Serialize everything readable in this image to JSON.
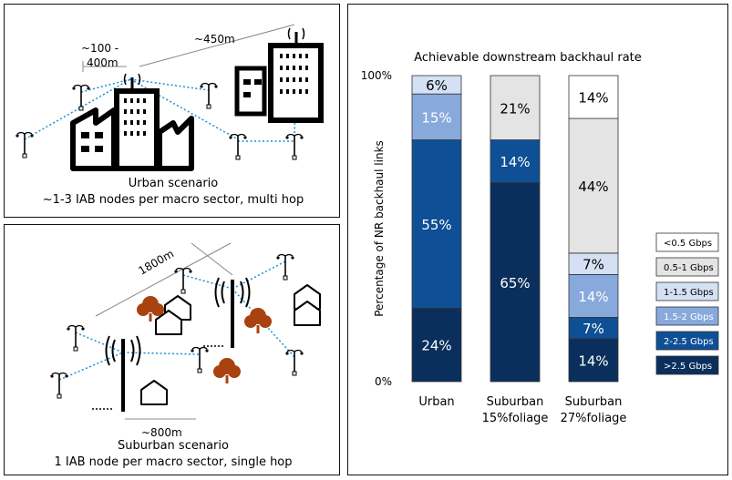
{
  "urban": {
    "dist_near_line1": "~100 -",
    "dist_near_line2": "400m",
    "dist_far": "~450m",
    "caption_line1": "Urban scenario",
    "caption_line2": "~1-3 IAB nodes per macro sector, multi hop"
  },
  "suburban": {
    "dist_far": "1800m",
    "dist_near": "~800m",
    "caption_line1": "Suburban scenario",
    "caption_line2": "1 IAB node per macro sector, single hop"
  },
  "chart_data": {
    "type": "bar",
    "stacked": true,
    "title": "Achievable downstream backhaul rate",
    "ylabel": "Percentage of NR backhaul links",
    "xlabel": "",
    "ylim": [
      0,
      100
    ],
    "y_ticks": [
      "0%",
      "100%"
    ],
    "categories": [
      {
        "line1": "Urban",
        "line2": ""
      },
      {
        "line1": "Suburban",
        "line2": "15%foliage"
      },
      {
        "line1": "Suburban",
        "line2": "27%foliage"
      }
    ],
    "series": [
      {
        "name": ">2.5 Gbps",
        "color": "#0b2f5c",
        "text_color": "#ffffff",
        "values": [
          24,
          65,
          14
        ]
      },
      {
        "name": "2-2.5 Gbps",
        "color": "#0e4f96",
        "text_color": "#ffffff",
        "values": [
          55,
          14,
          7
        ]
      },
      {
        "name": "1.5-2 Gbps",
        "color": "#88a9dc",
        "text_color": "#ffffff",
        "values": [
          15,
          0,
          14
        ]
      },
      {
        "name": "1-1.5 Gbps",
        "color": "#d4e0f3",
        "text_color": "#000000",
        "values": [
          6,
          0,
          7
        ]
      },
      {
        "name": "0.5-1 Gbps",
        "color": "#e4e4e4",
        "text_color": "#000000",
        "values": [
          0,
          21,
          44
        ]
      },
      {
        "name": "<0.5 Gbps",
        "color": "#ffffff",
        "text_color": "#000000",
        "values": [
          0,
          0,
          14
        ]
      }
    ],
    "data_labels": [
      [
        "24%",
        "55%",
        "15%",
        "6%",
        "",
        ""
      ],
      [
        "65%",
        "14%",
        "",
        "",
        "21%",
        ""
      ],
      [
        "14%",
        "7%",
        "14%",
        "7%",
        "44%",
        "14%"
      ]
    ],
    "legend_placement": "right"
  }
}
